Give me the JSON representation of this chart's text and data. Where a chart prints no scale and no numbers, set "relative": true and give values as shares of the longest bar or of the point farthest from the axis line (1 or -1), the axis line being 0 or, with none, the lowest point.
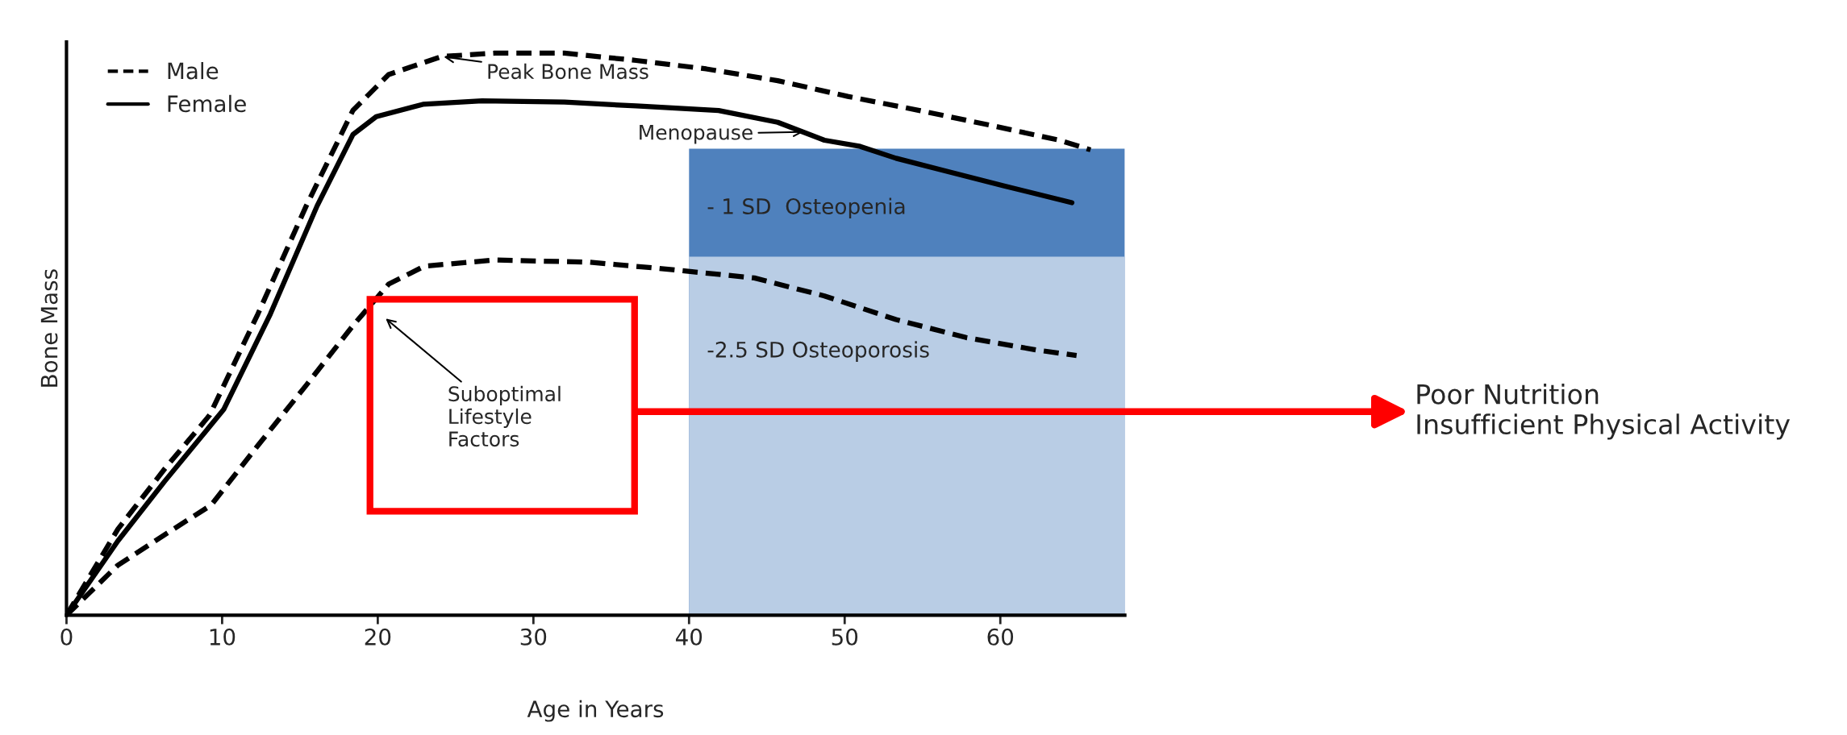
{
  "chart_data": {
    "type": "line",
    "relative": true,
    "xlabel": "Age in Years",
    "ylabel": "Bone Mass",
    "xlim": [
      0,
      68
    ],
    "xticks": [
      0,
      10,
      20,
      30,
      40,
      50,
      60
    ],
    "grid": false,
    "legend": "top left",
    "marker": "none",
    "series": [
      {
        "type": "area",
        "color": "#4f81bd",
        "x": [
          40,
          68
        ],
        "values": [
          0.83,
          0.83
        ]
      },
      {
        "type": "area",
        "color": "#b9cde5",
        "x": [
          40,
          68
        ],
        "values": [
          0.638,
          0.638
        ]
      },
      {
        "name": "Male",
        "color": "#000000",
        "line_style": "dashed",
        "x": [
          0,
          3.3,
          6.3,
          9.2,
          12.3,
          15.4,
          18.4,
          20.7,
          24.1,
          27.5,
          32.0,
          36.6,
          41.1,
          45.7,
          50.2,
          54.8,
          59.3,
          63.8,
          65.8
        ],
        "values": [
          0,
          0.153,
          0.26,
          0.356,
          0.536,
          0.728,
          0.898,
          0.962,
          0.994,
          1.0,
          1.0,
          0.987,
          0.972,
          0.951,
          0.923,
          0.898,
          0.872,
          0.845,
          0.828
        ]
      },
      {
        "name": "Female",
        "color": "#000000",
        "line_style": "solid",
        "x": [
          0,
          3.3,
          6.3,
          10.1,
          13.1,
          16.1,
          18.4,
          19.9,
          22.9,
          26.7,
          32.0,
          36.6,
          41.9,
          45.7,
          48.7,
          51.0,
          53.3,
          56.4,
          60.2,
          64.6
        ],
        "values": [
          0,
          0.132,
          0.238,
          0.366,
          0.536,
          0.728,
          0.855,
          0.887,
          0.909,
          0.915,
          0.913,
          0.906,
          0.898,
          0.877,
          0.845,
          0.834,
          0.813,
          0.791,
          0.764,
          0.734
        ]
      },
      {
        "color": "#000000",
        "line_style": "dashed",
        "x": [
          0,
          3.3,
          6.3,
          9.3,
          12.3,
          15.4,
          18.4,
          20.7,
          23.0,
          27.5,
          33.6,
          38.1,
          44.2,
          48.7,
          53.3,
          57.8,
          62.3,
          64.9
        ],
        "values": [
          0,
          0.089,
          0.143,
          0.196,
          0.302,
          0.409,
          0.515,
          0.589,
          0.621,
          0.632,
          0.628,
          0.617,
          0.6,
          0.568,
          0.526,
          0.494,
          0.472,
          0.462
        ]
      }
    ],
    "annotations": [
      {
        "text": "Peak Bone Mass",
        "x": 24.1,
        "y": 0.994
      },
      {
        "text": "Menopause",
        "x": 47.5,
        "y": 0.86
      },
      "Suboptimal\nLifestyle\nFactors",
      "- 1 SD  Osteopenia",
      "-2.5 SD Osteoporosis",
      "Poor Nutrition\nInsufficient Physical Activity"
    ]
  }
}
